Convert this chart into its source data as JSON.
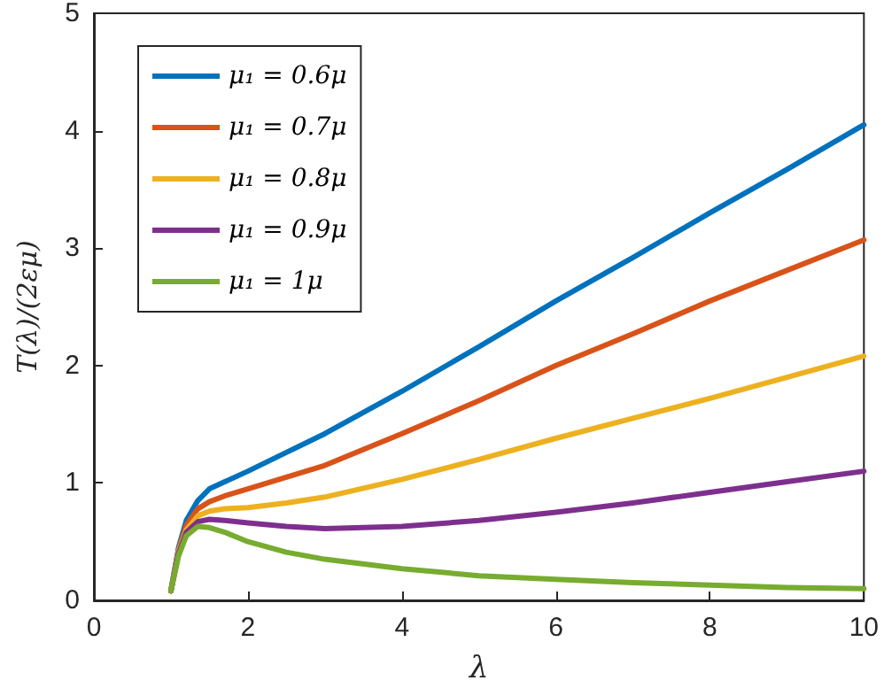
{
  "chart_data": {
    "type": "line",
    "xlabel": "λ",
    "ylabel": "T(λ)/(2εμ)",
    "series": [
      {
        "name": "μ₁ = 0.6μ",
        "color": "#0072bd",
        "x": [
          1,
          1.1,
          1.2,
          1.35,
          1.5,
          1.7,
          2,
          2.5,
          3,
          4,
          5,
          6,
          7,
          8,
          9,
          10
        ],
        "values": [
          0.08,
          0.45,
          0.68,
          0.85,
          0.95,
          1.01,
          1.1,
          1.26,
          1.42,
          1.78,
          2.16,
          2.55,
          2.92,
          3.3,
          3.67,
          4.05
        ]
      },
      {
        "name": "μ₁ = 0.7μ",
        "color": "#d95319",
        "x": [
          1,
          1.1,
          1.2,
          1.35,
          1.5,
          1.7,
          2,
          2.5,
          3,
          4,
          5,
          6,
          7,
          8,
          9,
          10
        ],
        "values": [
          0.08,
          0.43,
          0.64,
          0.78,
          0.84,
          0.89,
          0.95,
          1.05,
          1.15,
          1.42,
          1.7,
          2.0,
          2.27,
          2.55,
          2.81,
          3.07
        ]
      },
      {
        "name": "μ₁ = 0.8μ",
        "color": "#edb120",
        "x": [
          1,
          1.1,
          1.2,
          1.35,
          1.5,
          1.7,
          2,
          2.5,
          3,
          4,
          5,
          6,
          7,
          8,
          9,
          10
        ],
        "values": [
          0.08,
          0.42,
          0.6,
          0.72,
          0.76,
          0.78,
          0.79,
          0.83,
          0.88,
          1.03,
          1.2,
          1.38,
          1.55,
          1.72,
          1.9,
          2.08
        ]
      },
      {
        "name": "μ₁ = 0.9μ",
        "color": "#7e2f8e",
        "x": [
          1,
          1.1,
          1.2,
          1.35,
          1.5,
          1.7,
          2,
          2.5,
          3,
          4,
          5,
          6,
          7,
          8,
          9,
          10
        ],
        "values": [
          0.08,
          0.4,
          0.58,
          0.67,
          0.69,
          0.68,
          0.66,
          0.63,
          0.61,
          0.63,
          0.68,
          0.75,
          0.83,
          0.92,
          1.01,
          1.1
        ]
      },
      {
        "name": "μ₁ = 1μ",
        "color": "#77ac30",
        "x": [
          1,
          1.1,
          1.2,
          1.35,
          1.5,
          1.7,
          2,
          2.5,
          3,
          4,
          5,
          6,
          7,
          8,
          9,
          10
        ],
        "values": [
          0.08,
          0.38,
          0.55,
          0.63,
          0.62,
          0.58,
          0.5,
          0.41,
          0.35,
          0.27,
          0.21,
          0.18,
          0.15,
          0.13,
          0.11,
          0.1
        ]
      }
    ],
    "xlim": [
      0,
      10
    ],
    "xticks": [
      0,
      2,
      4,
      6,
      8,
      10
    ],
    "ylim": [
      0,
      5
    ],
    "yticks": [
      0,
      1,
      2,
      3,
      4,
      5
    ],
    "grid": false,
    "legend": "top left",
    "marker": "none",
    "line_style": "solid"
  }
}
